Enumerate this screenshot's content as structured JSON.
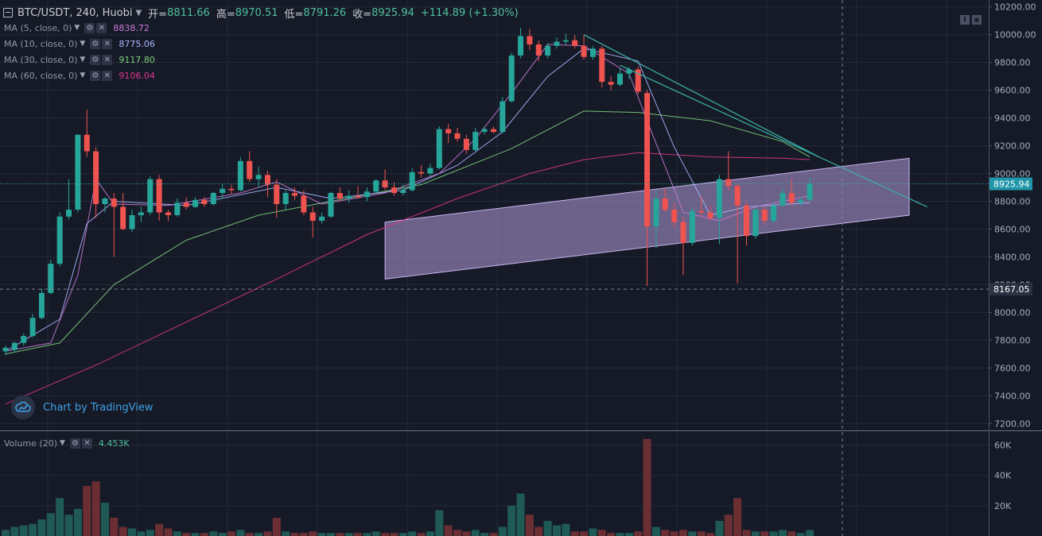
{
  "header": {
    "symbol": "BTC/USDT, 240, Huobi",
    "open_label": "开=",
    "open": "8811.66",
    "high_label": "高=",
    "high": "8970.51",
    "low_label": "低=",
    "low": "8791.26",
    "close_label": "收=",
    "close": "8925.94",
    "change": "+114.89 (+1.30%)"
  },
  "indicators": [
    {
      "label": "MA (5, close, 0)",
      "value": "8838.72",
      "color": "#c77bd6"
    },
    {
      "label": "MA (10, close, 0)",
      "value": "8775.06",
      "color": "#a9b6ff"
    },
    {
      "label": "MA (30, close, 0)",
      "value": "9117.80",
      "color": "#7ccf7c"
    },
    {
      "label": "MA (60, close, 0)",
      "value": "9106.04",
      "color": "#e0338c"
    }
  ],
  "volume": {
    "label": "Volume (20)",
    "value": "4.453K"
  },
  "watermark": "Chart by TradingView",
  "price_axis": {
    "ticks": [
      "10200.00",
      "10000.00",
      "9800.00",
      "9600.00",
      "9400.00",
      "9200.00",
      "9000.00",
      "8800.00",
      "8600.00",
      "8400.00",
      "8200.00",
      "8000.00",
      "7800.00",
      "7600.00",
      "7400.00",
      "7200.00"
    ],
    "current_price": "8925.94",
    "crosshair_price": "8167.05"
  },
  "volume_axis": {
    "ticks": [
      "60K",
      "40K",
      "20K"
    ]
  },
  "colors": {
    "background": "#161a27",
    "up": "#26a69a",
    "down": "#ef5350",
    "channel_fill": "#b39ddb",
    "trendline": "#3cb4a8",
    "price_label_bg": "#2196a8"
  },
  "chart_data": {
    "type": "candlestick",
    "title": "BTC/USDT, 240, Huobi",
    "ylim": [
      7150,
      10250
    ],
    "volume_ylim": [
      0,
      66000
    ],
    "candles": [
      {
        "o": 7720,
        "h": 7760,
        "l": 7690,
        "c": 7745
      },
      {
        "o": 7730,
        "h": 7790,
        "l": 7710,
        "c": 7780
      },
      {
        "o": 7780,
        "h": 7850,
        "l": 7760,
        "c": 7830
      },
      {
        "o": 7830,
        "h": 7990,
        "l": 7820,
        "c": 7960
      },
      {
        "o": 7960,
        "h": 8170,
        "l": 7950,
        "c": 8140
      },
      {
        "o": 8140,
        "h": 8380,
        "l": 8130,
        "c": 8350
      },
      {
        "o": 8350,
        "h": 8720,
        "l": 8330,
        "c": 8690
      },
      {
        "o": 8690,
        "h": 8960,
        "l": 8670,
        "c": 8740
      },
      {
        "o": 8740,
        "h": 9280,
        "l": 8720,
        "c": 9280
      },
      {
        "o": 9280,
        "h": 9460,
        "l": 9120,
        "c": 9160
      },
      {
        "o": 9160,
        "h": 9190,
        "l": 8680,
        "c": 8780
      },
      {
        "o": 8780,
        "h": 8830,
        "l": 8720,
        "c": 8820
      },
      {
        "o": 8820,
        "h": 8860,
        "l": 8400,
        "c": 8760
      },
      {
        "o": 8760,
        "h": 8860,
        "l": 8590,
        "c": 8600
      },
      {
        "o": 8600,
        "h": 8740,
        "l": 8580,
        "c": 8700
      },
      {
        "o": 8700,
        "h": 8760,
        "l": 8650,
        "c": 8720
      },
      {
        "o": 8720,
        "h": 8980,
        "l": 8700,
        "c": 8960
      },
      {
        "o": 8960,
        "h": 8990,
        "l": 8660,
        "c": 8720
      },
      {
        "o": 8720,
        "h": 8740,
        "l": 8660,
        "c": 8700
      },
      {
        "o": 8700,
        "h": 8820,
        "l": 8690,
        "c": 8790
      },
      {
        "o": 8790,
        "h": 8830,
        "l": 8740,
        "c": 8760
      },
      {
        "o": 8760,
        "h": 8830,
        "l": 8750,
        "c": 8810
      },
      {
        "o": 8810,
        "h": 8830,
        "l": 8760,
        "c": 8780
      },
      {
        "o": 8780,
        "h": 8870,
        "l": 8770,
        "c": 8860
      },
      {
        "o": 8860,
        "h": 8930,
        "l": 8820,
        "c": 8890
      },
      {
        "o": 8890,
        "h": 8920,
        "l": 8850,
        "c": 8880
      },
      {
        "o": 8880,
        "h": 9120,
        "l": 8870,
        "c": 9090
      },
      {
        "o": 9090,
        "h": 9160,
        "l": 8940,
        "c": 8960
      },
      {
        "o": 8960,
        "h": 9050,
        "l": 8900,
        "c": 8990
      },
      {
        "o": 8990,
        "h": 9020,
        "l": 8830,
        "c": 8920
      },
      {
        "o": 8920,
        "h": 8960,
        "l": 8680,
        "c": 8780
      },
      {
        "o": 8780,
        "h": 8880,
        "l": 8740,
        "c": 8860
      },
      {
        "o": 8860,
        "h": 8900,
        "l": 8810,
        "c": 8840
      },
      {
        "o": 8840,
        "h": 8880,
        "l": 8700,
        "c": 8720
      },
      {
        "o": 8720,
        "h": 8760,
        "l": 8540,
        "c": 8660
      },
      {
        "o": 8660,
        "h": 8720,
        "l": 8640,
        "c": 8690
      },
      {
        "o": 8690,
        "h": 8870,
        "l": 8680,
        "c": 8860
      },
      {
        "o": 8860,
        "h": 8900,
        "l": 8800,
        "c": 8820
      },
      {
        "o": 8820,
        "h": 8880,
        "l": 8790,
        "c": 8840
      },
      {
        "o": 8840,
        "h": 8910,
        "l": 8820,
        "c": 8830
      },
      {
        "o": 8830,
        "h": 8900,
        "l": 8800,
        "c": 8870
      },
      {
        "o": 8870,
        "h": 8960,
        "l": 8860,
        "c": 8950
      },
      {
        "o": 8950,
        "h": 9030,
        "l": 8880,
        "c": 8900
      },
      {
        "o": 8900,
        "h": 8940,
        "l": 8840,
        "c": 8860
      },
      {
        "o": 8860,
        "h": 8920,
        "l": 8840,
        "c": 8880
      },
      {
        "o": 8880,
        "h": 9040,
        "l": 8870,
        "c": 9010
      },
      {
        "o": 9010,
        "h": 9060,
        "l": 8970,
        "c": 9000
      },
      {
        "o": 9000,
        "h": 9070,
        "l": 8980,
        "c": 9040
      },
      {
        "o": 9040,
        "h": 9340,
        "l": 9030,
        "c": 9320
      },
      {
        "o": 9320,
        "h": 9360,
        "l": 9220,
        "c": 9290
      },
      {
        "o": 9290,
        "h": 9330,
        "l": 9230,
        "c": 9250
      },
      {
        "o": 9250,
        "h": 9280,
        "l": 9140,
        "c": 9170
      },
      {
        "o": 9170,
        "h": 9330,
        "l": 9160,
        "c": 9300
      },
      {
        "o": 9300,
        "h": 9340,
        "l": 9280,
        "c": 9320
      },
      {
        "o": 9320,
        "h": 9340,
        "l": 9290,
        "c": 9300
      },
      {
        "o": 9300,
        "h": 9550,
        "l": 9290,
        "c": 9520
      },
      {
        "o": 9520,
        "h": 9870,
        "l": 9510,
        "c": 9850
      },
      {
        "o": 9850,
        "h": 10050,
        "l": 9830,
        "c": 9990
      },
      {
        "o": 9990,
        "h": 10040,
        "l": 9890,
        "c": 9930
      },
      {
        "o": 9930,
        "h": 9960,
        "l": 9810,
        "c": 9850
      },
      {
        "o": 9850,
        "h": 9940,
        "l": 9830,
        "c": 9920
      },
      {
        "o": 9920,
        "h": 9980,
        "l": 9900,
        "c": 9950
      },
      {
        "o": 9950,
        "h": 10010,
        "l": 9930,
        "c": 9960
      },
      {
        "o": 9960,
        "h": 10000,
        "l": 9900,
        "c": 9920
      },
      {
        "o": 9920,
        "h": 10000,
        "l": 9820,
        "c": 9840
      },
      {
        "o": 9840,
        "h": 9920,
        "l": 9820,
        "c": 9900
      },
      {
        "o": 9900,
        "h": 9920,
        "l": 9620,
        "c": 9660
      },
      {
        "o": 9660,
        "h": 9700,
        "l": 9600,
        "c": 9640
      },
      {
        "o": 9640,
        "h": 9760,
        "l": 9630,
        "c": 9720
      },
      {
        "o": 9720,
        "h": 9770,
        "l": 9680,
        "c": 9750
      },
      {
        "o": 9750,
        "h": 9770,
        "l": 9570,
        "c": 9590
      },
      {
        "o": 9580,
        "h": 9600,
        "l": 8190,
        "c": 8620
      },
      {
        "o": 8620,
        "h": 8880,
        "l": 8460,
        "c": 8820
      },
      {
        "o": 8820,
        "h": 8890,
        "l": 8720,
        "c": 8740
      },
      {
        "o": 8740,
        "h": 8790,
        "l": 8610,
        "c": 8650
      },
      {
        "o": 8650,
        "h": 8690,
        "l": 8270,
        "c": 8500
      },
      {
        "o": 8500,
        "h": 8760,
        "l": 8480,
        "c": 8730
      },
      {
        "o": 8730,
        "h": 8830,
        "l": 8690,
        "c": 8720
      },
      {
        "o": 8720,
        "h": 8770,
        "l": 8660,
        "c": 8680
      },
      {
        "o": 8680,
        "h": 8990,
        "l": 8490,
        "c": 8960
      },
      {
        "o": 8960,
        "h": 9160,
        "l": 8880,
        "c": 8910
      },
      {
        "o": 8910,
        "h": 8930,
        "l": 8210,
        "c": 8770
      },
      {
        "o": 8770,
        "h": 8800,
        "l": 8480,
        "c": 8550
      },
      {
        "o": 8550,
        "h": 8760,
        "l": 8530,
        "c": 8740
      },
      {
        "o": 8740,
        "h": 8760,
        "l": 8630,
        "c": 8660
      },
      {
        "o": 8660,
        "h": 8790,
        "l": 8640,
        "c": 8770
      },
      {
        "o": 8770,
        "h": 8890,
        "l": 8760,
        "c": 8860
      },
      {
        "o": 8860,
        "h": 8960,
        "l": 8770,
        "c": 8790
      },
      {
        "o": 8790,
        "h": 8830,
        "l": 8770,
        "c": 8810
      },
      {
        "o": 8811.66,
        "h": 8970.51,
        "l": 8791.26,
        "c": 8925.94
      }
    ],
    "volumes": [
      4,
      6,
      7,
      8,
      11,
      15,
      25,
      14,
      18,
      33,
      36,
      22,
      12,
      6,
      5,
      3,
      4,
      8,
      5,
      3,
      2,
      2,
      2,
      3,
      2,
      3,
      4,
      2,
      2,
      3,
      12,
      3,
      2,
      2,
      3,
      2,
      2,
      2,
      2,
      2,
      2,
      3,
      2,
      2,
      2,
      3,
      2,
      3,
      17,
      7,
      4,
      3,
      4,
      2,
      2,
      6,
      20,
      28,
      14,
      6,
      10,
      7,
      8,
      3,
      3,
      5,
      4,
      2,
      2,
      2,
      3,
      64,
      6,
      4,
      3,
      4,
      3,
      3,
      2,
      10,
      14,
      25,
      4,
      3,
      3,
      3,
      4,
      3,
      2,
      4
    ],
    "ma5": [
      [
        0,
        7720
      ],
      [
        5,
        7780
      ],
      [
        8,
        8270
      ],
      [
        10,
        8960
      ],
      [
        12,
        8780
      ],
      [
        18,
        8770
      ],
      [
        26,
        8860
      ],
      [
        30,
        8940
      ],
      [
        35,
        8780
      ],
      [
        42,
        8860
      ],
      [
        48,
        9000
      ],
      [
        52,
        9250
      ],
      [
        56,
        9580
      ],
      [
        60,
        9930
      ],
      [
        64,
        9920
      ],
      [
        69,
        9720
      ],
      [
        71,
        9380
      ],
      [
        75,
        8720
      ],
      [
        79,
        8660
      ],
      [
        83,
        8760
      ],
      [
        89,
        8840
      ]
    ],
    "ma10": [
      [
        0,
        7720
      ],
      [
        6,
        7950
      ],
      [
        9,
        8640
      ],
      [
        12,
        8800
      ],
      [
        20,
        8770
      ],
      [
        30,
        8900
      ],
      [
        36,
        8820
      ],
      [
        44,
        8880
      ],
      [
        50,
        9060
      ],
      [
        55,
        9300
      ],
      [
        60,
        9700
      ],
      [
        64,
        9900
      ],
      [
        70,
        9810
      ],
      [
        74,
        9190
      ],
      [
        78,
        8700
      ],
      [
        82,
        8760
      ],
      [
        89,
        8790
      ]
    ],
    "ma30": [
      [
        0,
        7700
      ],
      [
        6,
        7780
      ],
      [
        12,
        8200
      ],
      [
        20,
        8520
      ],
      [
        28,
        8700
      ],
      [
        36,
        8800
      ],
      [
        46,
        8920
      ],
      [
        56,
        9180
      ],
      [
        64,
        9450
      ],
      [
        70,
        9440
      ],
      [
        78,
        9380
      ],
      [
        86,
        9230
      ],
      [
        89,
        9120
      ]
    ],
    "ma60": [
      [
        0,
        7340
      ],
      [
        10,
        7620
      ],
      [
        20,
        7930
      ],
      [
        30,
        8240
      ],
      [
        40,
        8560
      ],
      [
        50,
        8820
      ],
      [
        58,
        9000
      ],
      [
        64,
        9100
      ],
      [
        70,
        9150
      ],
      [
        78,
        9120
      ],
      [
        86,
        9110
      ],
      [
        89,
        9100
      ]
    ],
    "channel": {
      "start": {
        "index": 42,
        "lower": 8240,
        "upper": 8650
      },
      "end": {
        "index": 100,
        "lower": 8700,
        "upper": 9110
      }
    },
    "trendlines": [
      {
        "from": {
          "index": 64,
          "price": 10000
        },
        "to": {
          "index": 90,
          "price": 9120
        }
      },
      {
        "from": {
          "index": 68,
          "price": 9780
        },
        "to": {
          "index": 102,
          "price": 8760
        }
      }
    ],
    "current_price": 8925.94,
    "crosshair_price": 8167.05
  }
}
